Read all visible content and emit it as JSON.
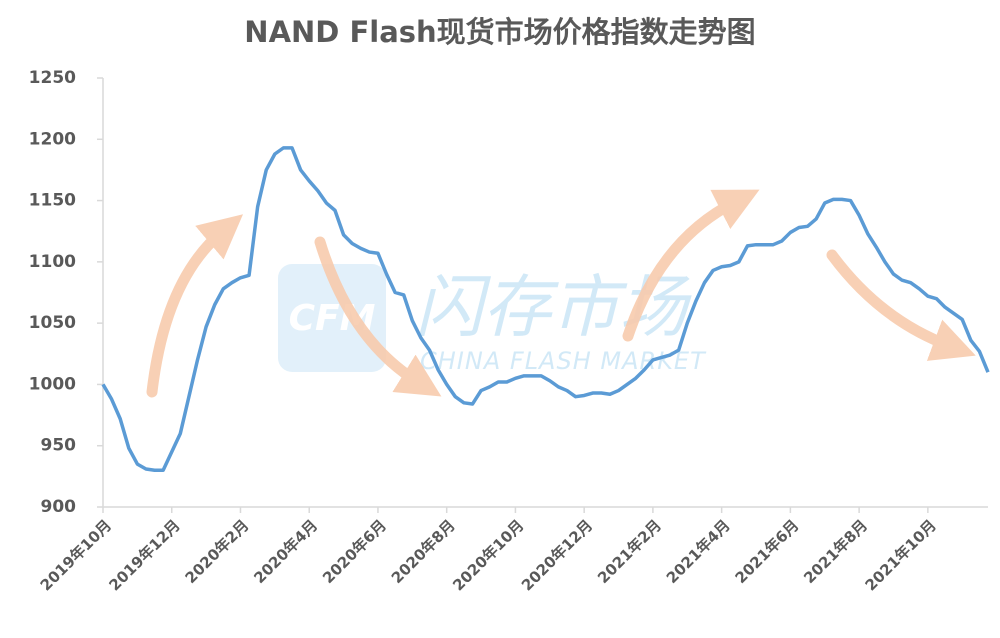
{
  "chart_data": {
    "type": "line",
    "title": "NAND Flash现货市场价格指数走势图",
    "watermark": {
      "logo": "CFM",
      "name": "闪存市场",
      "english": "CHINA FLASH MARKET"
    },
    "categories": [
      "2019年10月",
      null,
      null,
      null,
      null,
      null,
      null,
      null,
      "2019年12月",
      null,
      null,
      null,
      null,
      null,
      null,
      null,
      "2020年2月",
      null,
      null,
      null,
      null,
      null,
      null,
      null,
      "2020年4月",
      null,
      null,
      null,
      null,
      null,
      null,
      null,
      "2020年6月",
      null,
      null,
      null,
      null,
      null,
      null,
      null,
      "2020年8月",
      null,
      null,
      null,
      null,
      null,
      null,
      null,
      "2020年10月",
      null,
      null,
      null,
      null,
      null,
      null,
      null,
      "2020年12月",
      null,
      null,
      null,
      null,
      null,
      null,
      null,
      "2021年2月",
      null,
      null,
      null,
      null,
      null,
      null,
      null,
      "2021年4月",
      null,
      null,
      null,
      null,
      null,
      null,
      null,
      "2021年6月",
      null,
      null,
      null,
      null,
      null,
      null,
      null,
      "2021年8月",
      null,
      null,
      null,
      null,
      null,
      null,
      null,
      "2021年10月",
      null,
      null,
      null,
      null,
      null,
      null,
      null
    ],
    "values": [
      1000,
      988,
      972,
      948,
      935,
      931,
      930,
      930,
      945,
      960,
      990,
      1020,
      1047,
      1065,
      1078,
      1083,
      1087,
      1089,
      1145,
      1175,
      1188,
      1193,
      1193,
      1175,
      1166,
      1158,
      1148,
      1142,
      1122,
      1115,
      1111,
      1108,
      1107,
      1090,
      1075,
      1073,
      1052,
      1038,
      1028,
      1012,
      1000,
      990,
      985,
      984,
      995,
      998,
      1002,
      1002,
      1005,
      1007,
      1007,
      1007,
      1003,
      998,
      995,
      990,
      991,
      993,
      993,
      992,
      995,
      1000,
      1005,
      1012,
      1020,
      1022,
      1024,
      1028,
      1050,
      1068,
      1083,
      1093,
      1096,
      1097,
      1100,
      1113,
      1114,
      1114,
      1114,
      1117,
      1124,
      1128,
      1129,
      1135,
      1148,
      1151,
      1151,
      1150,
      1138,
      1123,
      1112,
      1100,
      1090,
      1085,
      1083,
      1078,
      1072,
      1070,
      1063,
      1058,
      1053,
      1036,
      1027,
      1010
    ],
    "color": "#5b9bd5",
    "ylim": [
      900,
      1250
    ],
    "yticks": [
      900,
      950,
      1000,
      1050,
      1100,
      1150,
      1200,
      1250
    ],
    "grid": false
  }
}
